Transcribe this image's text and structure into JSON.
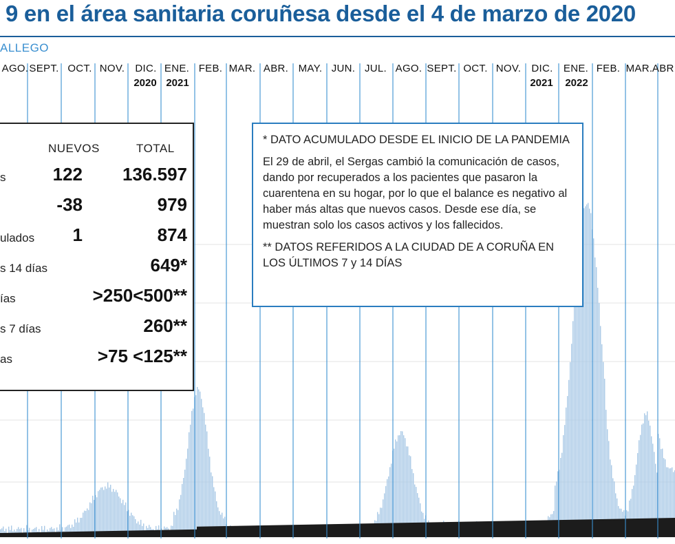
{
  "title": "9 en el área sanitaria coruñesa desde el 4 de marzo de 2020",
  "source": "ALLEGO",
  "chart_data": {
    "type": "bar",
    "series": [
      {
        "name": "",
        "color": "#a9c9e6"
      },
      {
        "name": "",
        "color": "#1c1c1c"
      }
    ],
    "months": [
      "AGO.",
      "SEPT.",
      "OCT.",
      "NOV.",
      "DIC.",
      "ENE.",
      "FEB.",
      "MAR.",
      "ABR.",
      "MAY.",
      "JUN.",
      "JUL.",
      "AGO.",
      "SEPT.",
      "OCT.",
      "NOV.",
      "DIC.",
      "ENE.",
      "FEB.",
      "MAR.",
      "ABR."
    ],
    "years": [
      "2020",
      "2021",
      "2021",
      "2022"
    ],
    "waves": [
      {
        "period": "NOV. 2020",
        "level": 0.12
      },
      {
        "period": "ENE.-FEB. 2021",
        "level": 0.37
      },
      {
        "period": "JUL.-AGO. 2021",
        "level": 0.27
      },
      {
        "period": "ENE. 2022",
        "level": 0.85
      },
      {
        "period": "MAR. 2022",
        "level": 0.31
      }
    ],
    "grid": true
  },
  "stats": {
    "header_new": "NUEVOS",
    "header_total": "TOTAL",
    "rows": [
      {
        "label": "s",
        "new": "122",
        "total": "136.597"
      },
      {
        "label": "",
        "new": "-38",
        "total": "979"
      },
      {
        "label": "ulados",
        "new": "1",
        "total": "874"
      },
      {
        "label": "s 14 días",
        "new": "",
        "total": "649*"
      },
      {
        "label": "ías",
        "new": "",
        "total": ">250<500**"
      },
      {
        "label": "s 7 días",
        "new": "",
        "total": "260**"
      },
      {
        "label": "as",
        "new": "",
        "total": ">75 <125**"
      }
    ]
  },
  "notes": {
    "note1": "* DATO ACUMULADO DESDE EL INICIO DE LA PANDEMIA",
    "note2": "El 29 de abril, el Sergas cambió la comunicación de casos, dando por recuperados a los pacientes que pasaron la cuarentena en su hogar, por lo que el balance es negativo al haber más altas que nuevos casos. Desde ese día, se muestran solo los casos activos y los fallecidos.",
    "note3": "** DATOS REFERIDOS A LA CIUDAD DE A CORUÑA EN LOS ÚLTIMOS 7 y 14 DÍAS"
  }
}
